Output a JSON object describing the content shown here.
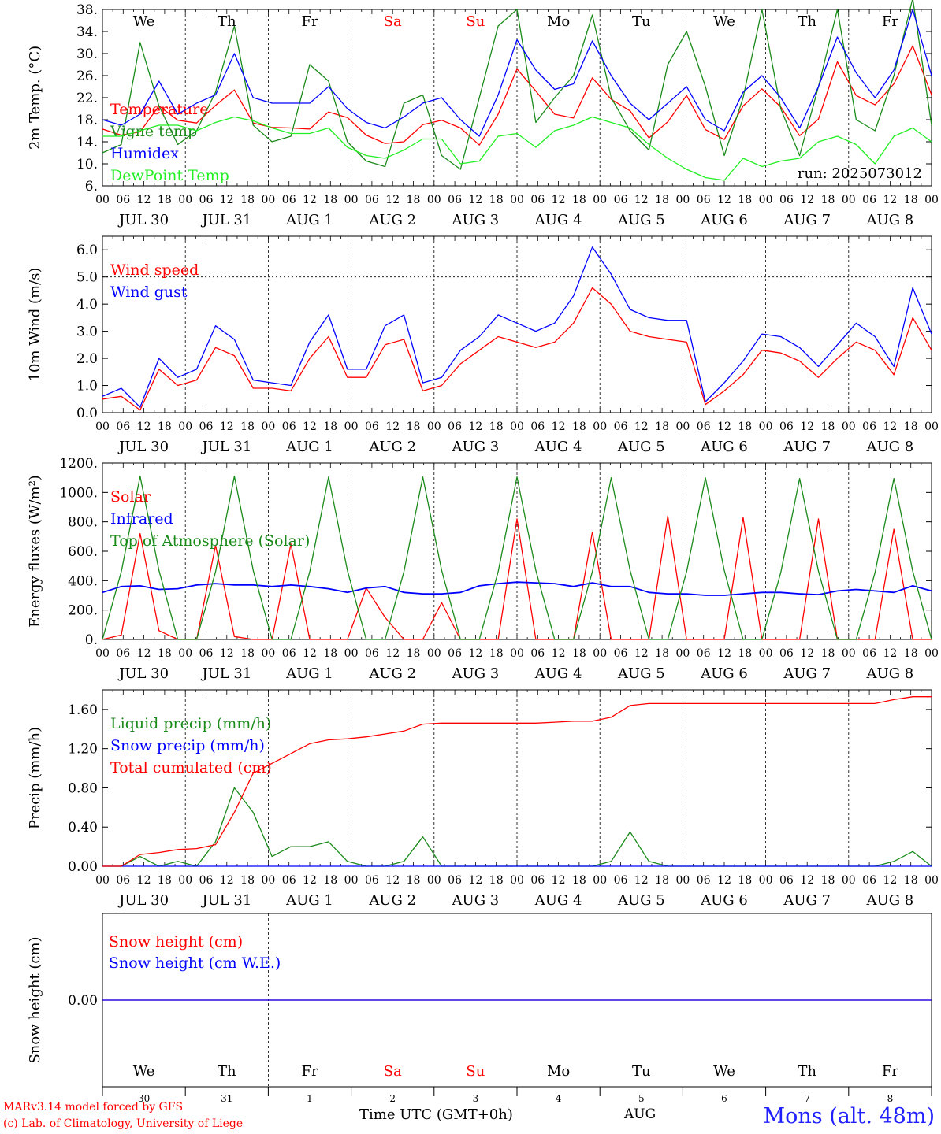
{
  "colors": {
    "red": "#ff0000",
    "green": "#1a8a1a",
    "lightgreen": "#22ee22",
    "blue": "#0000ff"
  },
  "x_axis": {
    "hour_ticks": [
      "00",
      "06",
      "12",
      "18"
    ],
    "final_tick": "00",
    "dates": [
      "JUL 30",
      "JUL 31",
      "AUG  1",
      "AUG  2",
      "AUG  3",
      "AUG  4",
      "AUG  5",
      "AUG  6",
      "AUG  7",
      "AUG  8"
    ],
    "weekdays": [
      "We",
      "Th",
      "Fr",
      "Sa",
      "Su",
      "Mo",
      "Tu",
      "We",
      "Th",
      "Fr"
    ],
    "weekday_colors": [
      "#000000",
      "#000000",
      "#000000",
      "#ff0000",
      "#ff0000",
      "#000000",
      "#000000",
      "#000000",
      "#000000",
      "#000000"
    ],
    "day_numbers": [
      "30",
      "31",
      "1",
      "2",
      "3",
      "4",
      "5",
      "6",
      "7",
      "8"
    ],
    "month_label": "AUG"
  },
  "chart_data": [
    {
      "type": "line",
      "ylabel": "2m Temp. (°C)",
      "ylim": [
        6,
        38
      ],
      "yticks": [
        "6.",
        "10.",
        "14.",
        "18.",
        "22.",
        "26.",
        "30.",
        "34.",
        "38."
      ],
      "annotation": "run: 2025073012",
      "x": "hours since JUL 30 00 UTC, every 6 h, 0..240",
      "series": [
        {
          "name": "Temperature",
          "color": "#ff0000",
          "values": [
            16.3,
            15.2,
            15.8,
            20.5,
            17.9,
            17.4,
            20.6,
            23.4,
            17.4,
            16.6,
            16.5,
            16.3,
            19.4,
            18.4,
            15.2,
            13.7,
            14.0,
            17.1,
            17.9,
            16.5,
            13.4,
            19.0,
            27.2,
            23.2,
            19.0,
            18.3,
            25.6,
            21.7,
            19.6,
            14.7,
            17.6,
            22.4,
            16.2,
            14.4,
            20.5,
            23.6,
            20.3,
            15.1,
            18.1,
            28.5,
            22.4,
            20.7,
            24.5,
            31.4,
            22.5
          ]
        },
        {
          "name": "Vigne temp",
          "color": "#1a8a1a",
          "values": [
            12.0,
            13.5,
            32.0,
            20.5,
            13.5,
            16.0,
            23.0,
            35.0,
            17.0,
            14.0,
            15.0,
            28.0,
            25.0,
            14.0,
            10.5,
            9.5,
            21.0,
            22.5,
            11.5,
            9.0,
            22.0,
            35.0,
            38.0,
            17.5,
            22.0,
            26.0,
            37.0,
            22.0,
            16.0,
            12.5,
            28.0,
            34.0,
            24.0,
            11.5,
            22.0,
            38.0,
            20.0,
            11.5,
            24.0,
            38.0,
            18.0,
            16.0,
            26.0,
            40.0,
            17.0
          ]
        },
        {
          "name": "Humidex",
          "color": "#0000ff",
          "values": [
            18.0,
            17.0,
            19.0,
            25.0,
            19.0,
            21.0,
            22.5,
            30.0,
            22.0,
            21.0,
            21.0,
            21.0,
            24.0,
            20.0,
            17.5,
            16.5,
            18.5,
            21.0,
            22.0,
            18.0,
            15.0,
            22.5,
            32.5,
            27.0,
            23.5,
            24.5,
            32.3,
            26.0,
            21.0,
            18.0,
            21.0,
            24.0,
            18.0,
            16.0,
            23.0,
            26.0,
            22.0,
            16.5,
            24.0,
            33.0,
            26.5,
            22.0,
            27.0,
            38.0,
            26.0
          ]
        },
        {
          "name": "DewPoint Temp",
          "color": "#22ee22",
          "values": [
            15.0,
            15.0,
            16.0,
            17.0,
            17.0,
            16.0,
            17.5,
            18.5,
            17.8,
            16.5,
            15.5,
            15.5,
            16.5,
            13.0,
            11.5,
            11.0,
            12.5,
            14.5,
            14.5,
            10.0,
            10.5,
            15.0,
            15.5,
            13.0,
            16.0,
            17.0,
            18.5,
            17.5,
            16.5,
            13.5,
            11.0,
            9.0,
            7.5,
            7.0,
            11.0,
            9.5,
            10.5,
            11.0,
            14.0,
            15.0,
            13.5,
            10.0,
            15.0,
            16.5,
            14.0
          ]
        }
      ]
    },
    {
      "type": "line",
      "ylabel": "10m Wind (m/s)",
      "ylim": [
        0,
        6.5
      ],
      "yticks": [
        "0.0",
        "1.0",
        "2.0",
        "3.0",
        "4.0",
        "5.0",
        "6.0"
      ],
      "x": "hours since JUL 30 00 UTC, every 6 h, 0..240",
      "series": [
        {
          "name": "Wind speed",
          "color": "#ff0000",
          "values": [
            0.5,
            0.6,
            0.1,
            1.6,
            1.0,
            1.2,
            2.4,
            2.1,
            0.9,
            0.9,
            0.8,
            2.0,
            2.8,
            1.3,
            1.3,
            2.5,
            2.7,
            0.8,
            1.0,
            1.8,
            2.3,
            2.8,
            2.6,
            2.4,
            2.6,
            3.3,
            4.6,
            4.0,
            3.0,
            2.8,
            2.7,
            2.6,
            0.3,
            0.8,
            1.4,
            2.3,
            2.2,
            1.9,
            1.3,
            2.0,
            2.6,
            2.3,
            1.4,
            3.5,
            2.3
          ]
        },
        {
          "name": "Wind gust",
          "color": "#0000ff",
          "values": [
            0.6,
            0.9,
            0.2,
            2.0,
            1.3,
            1.6,
            3.2,
            2.7,
            1.2,
            1.1,
            1.0,
            2.6,
            3.6,
            1.6,
            1.6,
            3.2,
            3.6,
            1.1,
            1.3,
            2.3,
            2.8,
            3.6,
            3.3,
            3.0,
            3.3,
            4.3,
            6.1,
            5.1,
            3.8,
            3.5,
            3.4,
            3.4,
            0.4,
            1.1,
            1.9,
            2.9,
            2.8,
            2.4,
            1.7,
            2.5,
            3.3,
            2.8,
            1.7,
            4.6,
            2.9
          ]
        }
      ]
    },
    {
      "type": "line",
      "ylabel": "Energy fluxes (W/m²)",
      "ylim": [
        0,
        1200
      ],
      "yticks": [
        "0.",
        "200.",
        "400.",
        "600.",
        "800.",
        "1000.",
        "1200."
      ],
      "x": "hours since JUL 30 00 UTC, every 6 h, 0..240",
      "series": [
        {
          "name": "Solar",
          "color": "#ff0000",
          "values": [
            0,
            30,
            720,
            60,
            0,
            0,
            640,
            20,
            0,
            0,
            650,
            0,
            0,
            0,
            350,
            150,
            0,
            0,
            250,
            0,
            0,
            0,
            820,
            0,
            0,
            0,
            730,
            0,
            0,
            0,
            840,
            0,
            0,
            0,
            830,
            0,
            0,
            0,
            820,
            0,
            0,
            0,
            750,
            0,
            0
          ]
        },
        {
          "name": "Infrared",
          "color": "#0000ff",
          "values": [
            320,
            360,
            365,
            340,
            345,
            370,
            380,
            370,
            370,
            360,
            370,
            360,
            345,
            320,
            350,
            360,
            320,
            310,
            310,
            320,
            365,
            380,
            390,
            385,
            380,
            360,
            385,
            360,
            360,
            320,
            310,
            310,
            300,
            300,
            310,
            320,
            320,
            310,
            305,
            330,
            340,
            330,
            320,
            365,
            330
          ]
        },
        {
          "name": "Top of Atmosphere (Solar)",
          "color": "#1a8a1a",
          "values": [
            0,
            460,
            1110,
            470,
            0,
            0,
            460,
            1110,
            470,
            0,
            0,
            460,
            1105,
            470,
            0,
            0,
            460,
            1105,
            470,
            0,
            0,
            460,
            1105,
            470,
            0,
            0,
            460,
            1100,
            470,
            0,
            0,
            460,
            1100,
            470,
            0,
            0,
            455,
            1095,
            465,
            0,
            0,
            455,
            1095,
            465,
            0
          ]
        }
      ]
    },
    {
      "type": "line",
      "ylabel": "Precip (mm/h)",
      "ylim": [
        0,
        1.8
      ],
      "yticks": [
        "0.00",
        "0.40",
        "0.80",
        "1.20",
        "1.60"
      ],
      "x": "hours since JUL 30 00 UTC, every 6 h, 0..240",
      "series": [
        {
          "name": "Liquid precip (mm/h)",
          "color": "#1a8a1a",
          "values": [
            0,
            0,
            0.1,
            0,
            0.05,
            0,
            0.25,
            0.8,
            0.55,
            0.1,
            0.2,
            0.2,
            0.25,
            0.05,
            0,
            0,
            0.05,
            0.3,
            0,
            0,
            0,
            0,
            0,
            0,
            0,
            0,
            0,
            0.05,
            0.35,
            0.05,
            0,
            0,
            0,
            0,
            0,
            0,
            0,
            0,
            0,
            0,
            0,
            0,
            0.05,
            0.15,
            0
          ]
        },
        {
          "name": "Snow precip (mm/h)",
          "color": "#0000ff",
          "values": [
            0,
            0,
            0,
            0,
            0,
            0,
            0,
            0,
            0,
            0,
            0,
            0,
            0,
            0,
            0,
            0,
            0,
            0,
            0,
            0,
            0,
            0,
            0,
            0,
            0,
            0,
            0,
            0,
            0,
            0,
            0,
            0,
            0,
            0,
            0,
            0,
            0,
            0,
            0,
            0,
            0,
            0,
            0,
            0,
            0
          ]
        },
        {
          "name": "Total cumulated (cm)",
          "color": "#ff0000",
          "values": [
            0,
            0,
            0.12,
            0.14,
            0.17,
            0.18,
            0.22,
            0.55,
            0.95,
            1.05,
            1.15,
            1.25,
            1.29,
            1.3,
            1.32,
            1.35,
            1.38,
            1.45,
            1.46,
            1.46,
            1.46,
            1.46,
            1.46,
            1.46,
            1.47,
            1.48,
            1.48,
            1.52,
            1.64,
            1.66,
            1.66,
            1.66,
            1.66,
            1.66,
            1.66,
            1.66,
            1.66,
            1.66,
            1.66,
            1.66,
            1.66,
            1.66,
            1.7,
            1.73,
            1.73
          ]
        }
      ]
    },
    {
      "type": "line",
      "ylabel": "Snow height (cm)",
      "ylim": [
        -1,
        1
      ],
      "yticks": [
        "0.00"
      ],
      "x": "hours since JUL 30 00 UTC, every 6 h, 0..240",
      "series": [
        {
          "name": "Snow height (cm)",
          "color": "#ff0000",
          "values": [
            0,
            0,
            0,
            0,
            0,
            0,
            0,
            0,
            0,
            0,
            0,
            0,
            0,
            0,
            0,
            0,
            0,
            0,
            0,
            0,
            0,
            0,
            0,
            0,
            0,
            0,
            0,
            0,
            0,
            0,
            0,
            0,
            0,
            0,
            0,
            0,
            0,
            0,
            0,
            0,
            0,
            0,
            0,
            0,
            0
          ]
        },
        {
          "name": "Snow height (cm W.E.)",
          "color": "#0000ff",
          "values": [
            0,
            0,
            0,
            0,
            0,
            0,
            0,
            0,
            0,
            0,
            0,
            0,
            0,
            0,
            0,
            0,
            0,
            0,
            0,
            0,
            0,
            0,
            0,
            0,
            0,
            0,
            0,
            0,
            0,
            0,
            0,
            0,
            0,
            0,
            0,
            0,
            0,
            0,
            0,
            0,
            0,
            0,
            0,
            0,
            0
          ]
        }
      ]
    }
  ],
  "footer": {
    "credit_line1": "MARv3.14 model forced by GFS",
    "credit_line2": "(c) Lab. of Climatology, University of Liege",
    "time_label": "Time UTC (GMT+0h)",
    "station": "Mons (alt. 48m)"
  }
}
